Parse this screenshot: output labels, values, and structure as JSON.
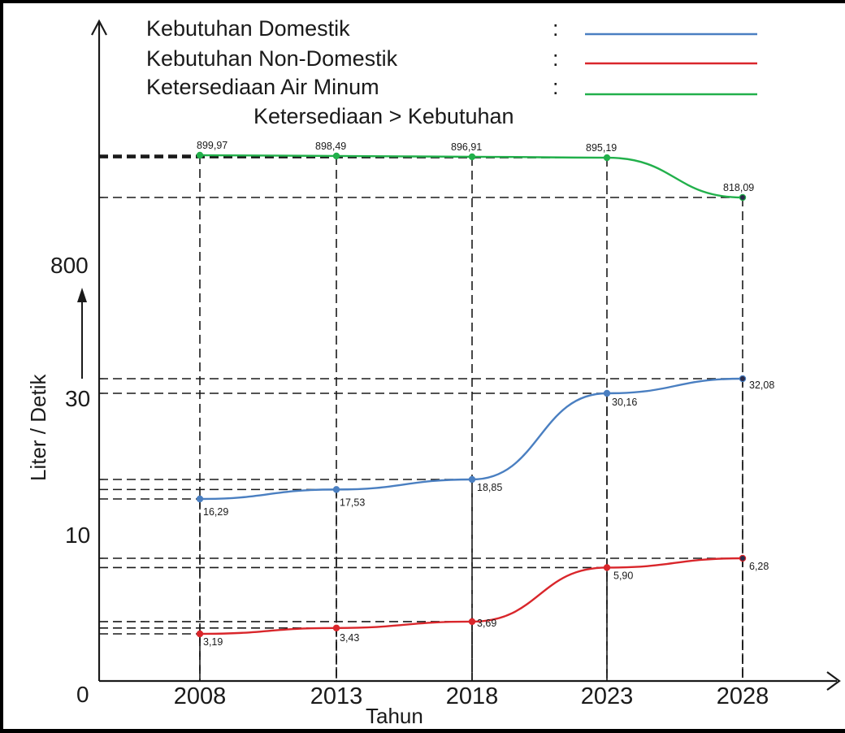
{
  "chart_data": {
    "type": "line",
    "categories": [
      "2008",
      "2013",
      "2018",
      "2023",
      "2028"
    ],
    "series": [
      {
        "key": "green",
        "name": "Ketersediaan Air Minum",
        "color": "#22b04b",
        "values": [
          899.97,
          898.49,
          896.91,
          895.19,
          818.09
        ],
        "labels": [
          "899,97",
          "898,49",
          "896,91",
          "895,19",
          "818,09"
        ]
      },
      {
        "key": "blue",
        "name": "Kebutuhan Domestik",
        "color": "#4a7fc1",
        "values": [
          16.29,
          17.53,
          18.85,
          30.16,
          32.08
        ],
        "labels": [
          "16,29",
          "17,53",
          "18,85",
          "30,16",
          "32,08"
        ]
      },
      {
        "key": "red",
        "name": "Kebutuhan Non-Domestik",
        "color": "#d9262b",
        "values": [
          3.19,
          3.43,
          3.69,
          5.9,
          6.28
        ],
        "labels": [
          "3,19",
          "3,43",
          "3,69",
          "5,90",
          "6,28"
        ]
      }
    ],
    "legend": [
      {
        "label": "Kebutuhan Domestik",
        "colon": ":",
        "color": "#4a7fc1"
      },
      {
        "label": "Kebutuhan Non-Domestik",
        "colon": ":",
        "color": "#d9262b"
      },
      {
        "label": "Ketersediaan Air Minum",
        "colon": ":",
        "color": "#22b04b"
      }
    ],
    "annotation": "Ketersediaan > Kebutuhan",
    "xlabel": "Tahun",
    "ylabel": "Liter / Detik",
    "y_ticks": [
      "800",
      "30",
      "10",
      "0"
    ],
    "y_scale": "broken (non-linear)",
    "grid": "dashed guide lines",
    "legend_position": "top"
  }
}
